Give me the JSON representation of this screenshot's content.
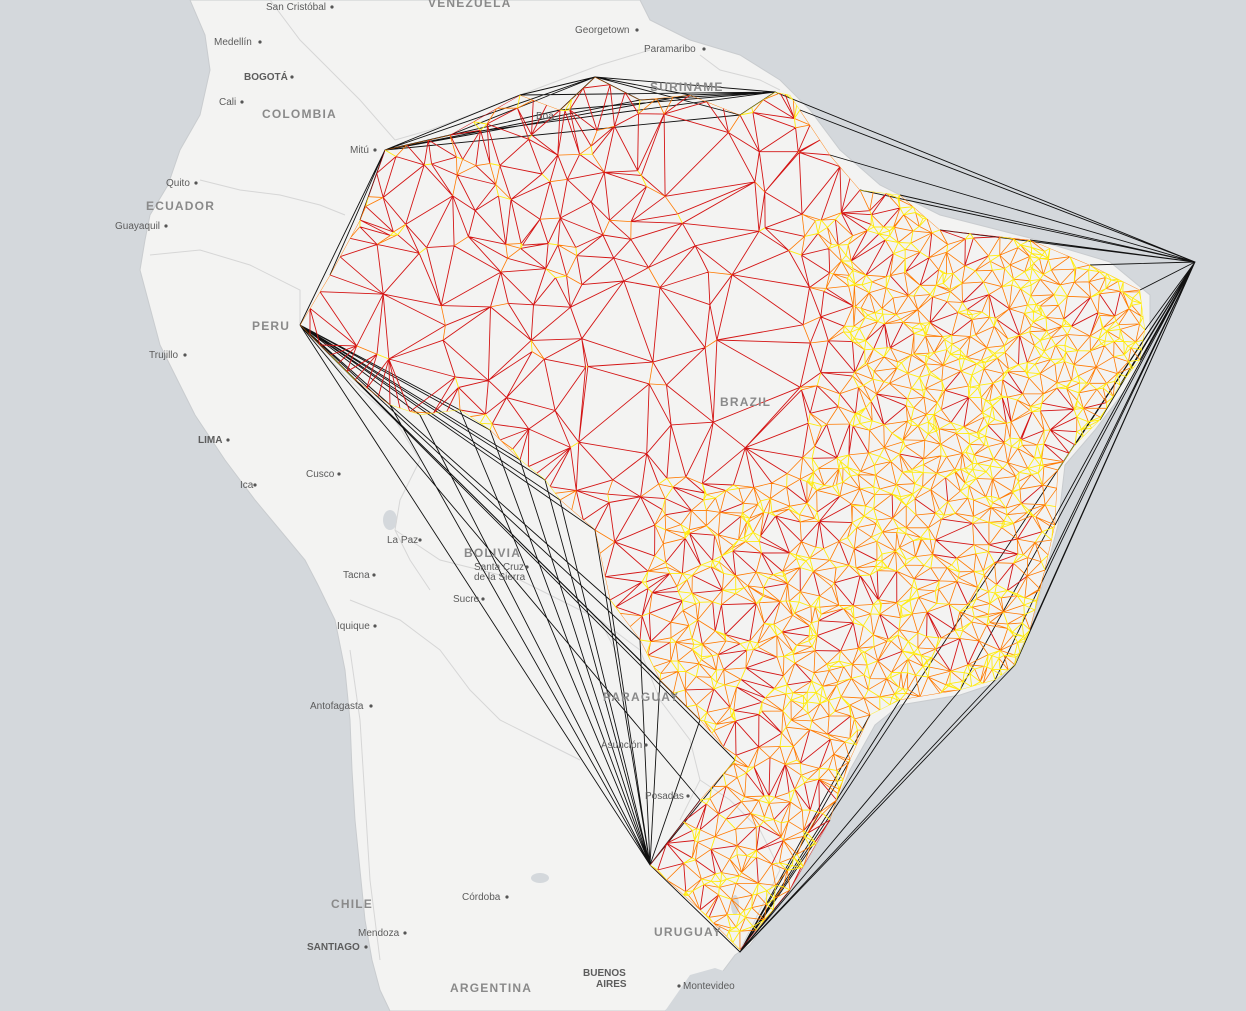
{
  "map": {
    "colors": {
      "ocean": "#d4d8dc",
      "land": "#f3f3f2",
      "border": "#d6d6d6",
      "hull_edges": "#111111",
      "mesh_red": "#d41515",
      "mesh_orange": "#ff7a00",
      "mesh_yellow": "#ffeb10"
    },
    "countries": [
      {
        "id": "venezuela",
        "label": "VENEZUELA"
      },
      {
        "id": "colombia",
        "label": "COLOMBIA"
      },
      {
        "id": "ecuador",
        "label": "ECUADOR"
      },
      {
        "id": "peru",
        "label": "PERU"
      },
      {
        "id": "suriname",
        "label": "SURINAME"
      },
      {
        "id": "brazil",
        "label": "BRAZIL"
      },
      {
        "id": "bolivia",
        "label": "BOLIVIA"
      },
      {
        "id": "paraguay",
        "label": "PARAGUAY"
      },
      {
        "id": "chile",
        "label": "CHILE"
      },
      {
        "id": "uruguay",
        "label": "URUGUAY"
      },
      {
        "id": "argentina",
        "label": "ARGENTINA"
      }
    ],
    "cities": [
      {
        "id": "san-cristobal",
        "label": "San Cristóbal"
      },
      {
        "id": "georgetown",
        "label": "Georgetown"
      },
      {
        "id": "paramaribo",
        "label": "Paramaribo"
      },
      {
        "id": "medellin",
        "label": "Medellín"
      },
      {
        "id": "bogota",
        "label": "BOGOTÁ"
      },
      {
        "id": "cali",
        "label": "Cali"
      },
      {
        "id": "mitu",
        "label": "Mitú"
      },
      {
        "id": "quito",
        "label": "Quito"
      },
      {
        "id": "guayaquil",
        "label": "Guayaquil"
      },
      {
        "id": "trujillo",
        "label": "Trujillo"
      },
      {
        "id": "lima",
        "label": "LIMA"
      },
      {
        "id": "cusco",
        "label": "Cusco"
      },
      {
        "id": "ica",
        "label": "Ica"
      },
      {
        "id": "la-paz",
        "label": "La Paz"
      },
      {
        "id": "santa-cruz-1",
        "label": "Santa Cruz"
      },
      {
        "id": "santa-cruz-2",
        "label": "de la Sierra"
      },
      {
        "id": "sucre",
        "label": "Sucre"
      },
      {
        "id": "tacna",
        "label": "Tacna"
      },
      {
        "id": "iquique",
        "label": "Iquique"
      },
      {
        "id": "antofagasta",
        "label": "Antofagasta"
      },
      {
        "id": "asuncion",
        "label": "Asunción"
      },
      {
        "id": "posadas",
        "label": "Posadas"
      },
      {
        "id": "cordoba",
        "label": "Córdoba"
      },
      {
        "id": "mendoza",
        "label": "Mendoza"
      },
      {
        "id": "santiago",
        "label": "SANTIAGO"
      },
      {
        "id": "buenos-aires-1",
        "label": "BUENOS"
      },
      {
        "id": "buenos-aires-2",
        "label": "AIRES"
      },
      {
        "id": "montevideo",
        "label": "Montevideo"
      },
      {
        "id": "boa-vista",
        "label": "Boa"
      }
    ]
  }
}
